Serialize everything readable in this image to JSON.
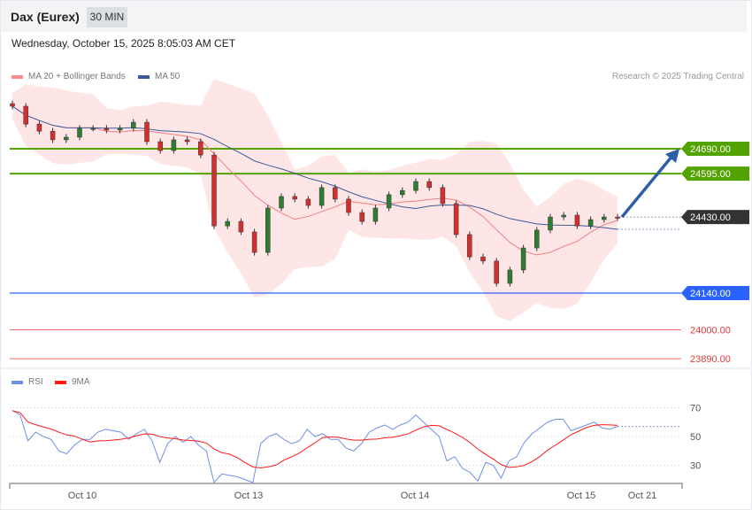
{
  "header": {
    "title": "Dax (Eurex)",
    "timeframe": "30 MIN",
    "datetime": "Wednesday, October 15, 2025 8:05:03 AM CET"
  },
  "legend": {
    "ma20": "MA 20 + Bollinger Bands",
    "ma50": "MA 50",
    "rsi": "RSI",
    "ma9": "9MA"
  },
  "credit": "Research © 2025 Trading Central",
  "colors": {
    "bull": "#2e7d32",
    "bear": "#d32f2f",
    "ma20": "#f08080",
    "bands": "#ffe3e3",
    "ma50": "#3a5a9a",
    "green_level": "#52a300",
    "blue_level": "#2962ff",
    "red_level": "#e53935",
    "pivot": "#333333",
    "arrow": "#2d5fa6",
    "rsi": "#6f8ee8",
    "rsi_ma": "#ff1a1a"
  },
  "chart_data": [
    {
      "type": "candlestick",
      "ylim": [
        23850,
        24900
      ],
      "closes": [
        24852,
        24784,
        24757,
        24724,
        24734,
        24768,
        24768,
        24761,
        24768,
        24791,
        24717,
        24683,
        24724,
        24717,
        24666,
        24396,
        24413,
        24373,
        24295,
        24464,
        24508,
        24498,
        24474,
        24542,
        24498,
        24447,
        24413,
        24464,
        24515,
        24531,
        24565,
        24542,
        24481,
        24363,
        24278,
        24262,
        24177,
        24228,
        24312,
        24380,
        24430,
        24437,
        24396,
        24420,
        24430,
        24427
      ],
      "levels": [
        {
          "value": "24690.00",
          "kind": "resistance",
          "color": "green"
        },
        {
          "value": "24595.00",
          "kind": "resistance",
          "color": "green"
        },
        {
          "value": "24430.00",
          "kind": "pivot",
          "color": "dark"
        },
        {
          "value": "24140.00",
          "kind": "support",
          "color": "blue"
        },
        {
          "value": "24000.00",
          "kind": "support",
          "color": "red"
        },
        {
          "value": "23890.00",
          "kind": "support",
          "color": "red"
        }
      ],
      "forecast_arrow": {
        "from": 24430,
        "to": 24690,
        "direction": "up"
      }
    },
    {
      "type": "line",
      "ylim": [
        15,
        80
      ],
      "yticks": [
        "70",
        "50",
        "30"
      ],
      "rsi": [
        68,
        65,
        47,
        53,
        50,
        48,
        40,
        38,
        44,
        48,
        48,
        53,
        55,
        54,
        53,
        48,
        52,
        55,
        47,
        32,
        45,
        50,
        46,
        50,
        44,
        40,
        18,
        24,
        23,
        22,
        20,
        18,
        45,
        50,
        52,
        48,
        45,
        47,
        55,
        50,
        52,
        48,
        48,
        42,
        40,
        45,
        53,
        56,
        58,
        55,
        58,
        60,
        65,
        60,
        55,
        50,
        33,
        36,
        28,
        25,
        19,
        32,
        30,
        21,
        33,
        36,
        46,
        52,
        56,
        60,
        62,
        62,
        54,
        56,
        58,
        60,
        56,
        55,
        57
      ],
      "xticks": [
        "Oct 10",
        "Oct 13",
        "Oct 14",
        "Oct 15",
        "Oct 21"
      ]
    }
  ]
}
